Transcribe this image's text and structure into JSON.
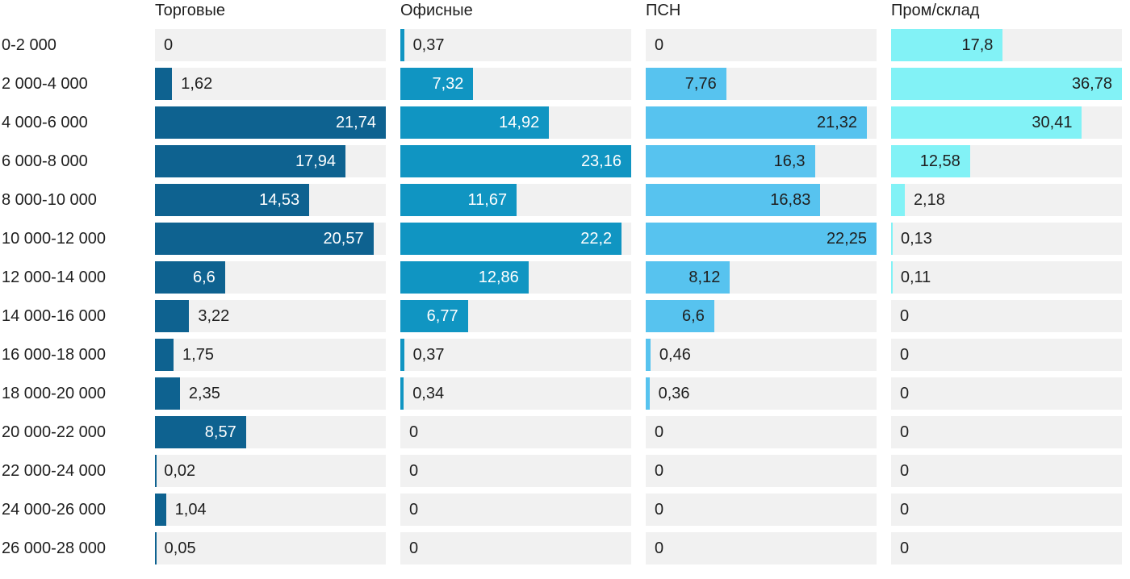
{
  "chart_data": {
    "type": "bar",
    "orientation": "horizontal",
    "scaling": "each column scaled independently to its own max value",
    "grid": false,
    "track_color": "#f1f1f1",
    "text_color": "#1f1f1f",
    "categories": [
      "0-2 000",
      "2 000-4 000",
      "4 000-6 000",
      "6 000-8 000",
      "8 000-10 000",
      "10 000-12 000",
      "12 000-14 000",
      "14 000-16 000",
      "16 000-18 000",
      "18 000-20 000",
      "20 000-22 000",
      "22 000-24 000",
      "24 000-26 000",
      "26 000-28 000"
    ],
    "series": [
      {
        "name": "Торговые",
        "color": "#0e6290",
        "inside_label_color": "#ffffff",
        "values": [
          0,
          1.62,
          21.74,
          17.94,
          14.53,
          20.57,
          6.6,
          3.22,
          1.75,
          2.35,
          8.57,
          0.02,
          1.04,
          0.05
        ],
        "labels": [
          "0",
          "1,62",
          "21,74",
          "17,94",
          "14,53",
          "20,57",
          "6,6",
          "3,22",
          "1,75",
          "2,35",
          "8,57",
          "0,02",
          "1,04",
          "0,05"
        ]
      },
      {
        "name": "Офисные",
        "color": "#1095c2",
        "inside_label_color": "#ffffff",
        "values": [
          0.37,
          7.32,
          14.92,
          23.16,
          11.67,
          22.2,
          12.86,
          6.77,
          0.37,
          0.34,
          0,
          0,
          0,
          0
        ],
        "labels": [
          "0,37",
          "7,32",
          "14,92",
          "23,16",
          "11,67",
          "22,2",
          "12,86",
          "6,77",
          "0,37",
          "0,34",
          "0",
          "0",
          "0",
          "0"
        ]
      },
      {
        "name": "ПСН",
        "color": "#57c3ef",
        "inside_label_color": "#1f1f1f",
        "values": [
          0,
          7.76,
          21.32,
          16.3,
          16.83,
          22.25,
          8.12,
          6.6,
          0.46,
          0.36,
          0,
          0,
          0,
          0
        ],
        "labels": [
          "0",
          "7,76",
          "21,32",
          "16,3",
          "16,83",
          "22,25",
          "8,12",
          "6,6",
          "0,46",
          "0,36",
          "0",
          "0",
          "0",
          "0"
        ]
      },
      {
        "name": "Пром/склад",
        "color": "#82f2f6",
        "inside_label_color": "#1f1f1f",
        "values": [
          17.8,
          36.78,
          30.41,
          12.58,
          2.18,
          0.13,
          0.11,
          0,
          0,
          0,
          0,
          0,
          0,
          0
        ],
        "labels": [
          "17,8",
          "36,78",
          "30,41",
          "12,58",
          "2,18",
          "0,13",
          "0,11",
          "0",
          "0",
          "0",
          "0",
          "0",
          "0",
          "0"
        ]
      }
    ]
  }
}
